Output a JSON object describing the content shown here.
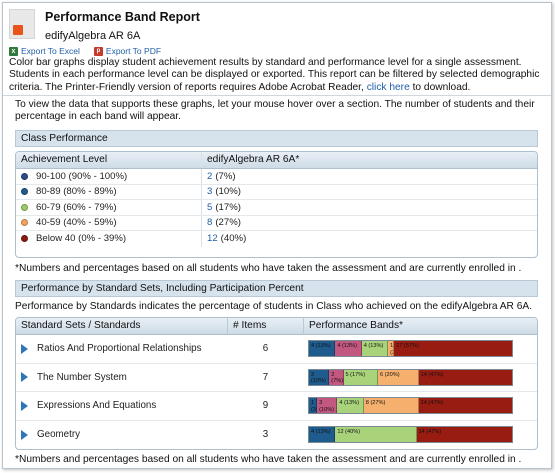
{
  "header": {
    "title": "Performance Band Report",
    "subtitle": "edifyAlgebra AR 6A",
    "export_excel": "Export To Excel",
    "export_pdf": "Export To PDF",
    "description": "Color bar graphs display student achievement results by standard and performance level for a single assessment. Students in each performance level can be displayed or exported. This report can be filtered by selected demographic criteria. The Printer-Friendly version of reports requires Adobe Acrobat Reader,",
    "click_here": "click here",
    "description_tail": "to download."
  },
  "hint": "To view the data that supports these graphs, let your mouse hover over a section. The number of students and their percentage in each band will appear.",
  "class_performance": {
    "section_title": "Class Performance",
    "col_level": "Achievement Level",
    "col_assessment": "edifyAlgebra AR 6A*",
    "rows": [
      {
        "label": "90-100 (90% - 100%)",
        "count": "2",
        "pct": "(7%)",
        "color": "#2e4a8a"
      },
      {
        "label": "80-89 (80% - 89%)",
        "count": "3",
        "pct": "(10%)",
        "color": "#1f5c8e"
      },
      {
        "label": "60-79 (60% - 79%)",
        "count": "5",
        "pct": "(17%)",
        "color": "#9ccc65"
      },
      {
        "label": "40-59 (40% - 59%)",
        "count": "8",
        "pct": "(27%)",
        "color": "#f5a25d"
      },
      {
        "label": "Below 40 (0% - 39%)",
        "count": "12",
        "pct": "(40%)",
        "color": "#8b1a10"
      }
    ],
    "note": "*Numbers and percentages based on all students who have taken the assessment and are currently enrolled in ."
  },
  "standards": {
    "section_title": "Performance by Standard Sets, Including Participation Percent",
    "intro": "Performance by Standards indicates the percentage of students in Class who achieved on the edifyAlgebra AR 6A.",
    "col_name": "Standard Sets / Standards",
    "col_items": "# Items",
    "col_bands": "Performance Bands*",
    "rows": [
      {
        "name": "Ratios And Proportional Relationships",
        "items": "6",
        "segments": [
          {
            "label": "4 (13%)",
            "pct": 13,
            "color": "#1f5c8e"
          },
          {
            "label": "4 (13%)",
            "pct": 13,
            "color": "#c2577f"
          },
          {
            "label": "4 (13%)",
            "pct": 13,
            "color": "#a8d37a"
          },
          {
            "label": "1 (3%)",
            "pct": 3,
            "color": "#f5b06e"
          },
          {
            "label": "17 (57%)",
            "pct": 58,
            "color": "#981c12"
          }
        ]
      },
      {
        "name": "The Number System",
        "items": "7",
        "segments": [
          {
            "label": "3 (10%)",
            "pct": 10,
            "color": "#1f5c8e"
          },
          {
            "label": "2 (7%)",
            "pct": 7,
            "color": "#c2577f"
          },
          {
            "label": "5 (17%)",
            "pct": 17,
            "color": "#a8d37a"
          },
          {
            "label": "6 (20%)",
            "pct": 20,
            "color": "#f5b06e"
          },
          {
            "label": "14 (47%)",
            "pct": 46,
            "color": "#981c12"
          }
        ]
      },
      {
        "name": "Expressions And Equations",
        "items": "9",
        "segments": [
          {
            "label": "1 (3%)",
            "pct": 4,
            "color": "#1f5c8e"
          },
          {
            "label": "3 (10%)",
            "pct": 10,
            "color": "#c2577f"
          },
          {
            "label": "4 (13%)",
            "pct": 13,
            "color": "#a8d37a"
          },
          {
            "label": "8 (27%)",
            "pct": 27,
            "color": "#f5b06e"
          },
          {
            "label": "14 (47%)",
            "pct": 46,
            "color": "#981c12"
          }
        ]
      },
      {
        "name": "Geometry",
        "items": "3",
        "segments": [
          {
            "label": "4 (13%)",
            "pct": 13,
            "color": "#1f5c8e"
          },
          {
            "label": "12 (40%)",
            "pct": 40,
            "color": "#a8d37a"
          },
          {
            "label": "14 (47%)",
            "pct": 47,
            "color": "#981c12"
          }
        ]
      }
    ],
    "note": "*Numbers and percentages based on all students who have taken the assessment and are currently enrolled in ."
  }
}
